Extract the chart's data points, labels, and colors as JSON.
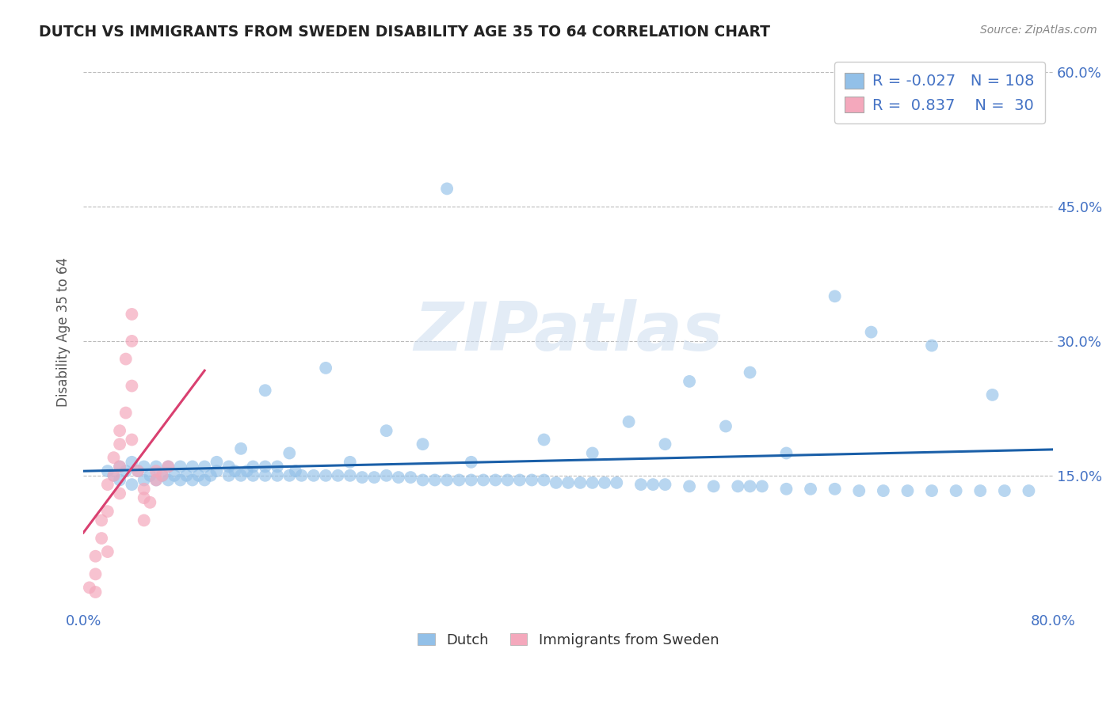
{
  "title": "DUTCH VS IMMIGRANTS FROM SWEDEN DISABILITY AGE 35 TO 64 CORRELATION CHART",
  "source": "Source: ZipAtlas.com",
  "ylabel": "Disability Age 35 to 64",
  "x_min": 0.0,
  "x_max": 0.8,
  "y_min": 0.0,
  "y_max": 0.62,
  "x_ticks": [
    0.0,
    0.1,
    0.2,
    0.3,
    0.4,
    0.5,
    0.6,
    0.7,
    0.8
  ],
  "x_tick_labels": [
    "0.0%",
    "",
    "",
    "",
    "",
    "",
    "",
    "",
    "80.0%"
  ],
  "y_ticks": [
    0.15,
    0.3,
    0.45,
    0.6
  ],
  "y_tick_labels": [
    "15.0%",
    "30.0%",
    "45.0%",
    "60.0%"
  ],
  "legend_r_blue": "-0.027",
  "legend_n_blue": "108",
  "legend_r_pink": "0.837",
  "legend_n_pink": "30",
  "blue_color": "#92c0e8",
  "pink_color": "#f4a8bc",
  "blue_line_color": "#1a5fa8",
  "pink_line_color": "#d94070",
  "watermark": "ZIPatlas",
  "legend_label_blue": "Dutch",
  "legend_label_pink": "Immigrants from Sweden",
  "blue_scatter_x": [
    0.02,
    0.025,
    0.03,
    0.03,
    0.035,
    0.04,
    0.04,
    0.045,
    0.05,
    0.05,
    0.055,
    0.06,
    0.06,
    0.065,
    0.07,
    0.07,
    0.075,
    0.08,
    0.08,
    0.085,
    0.09,
    0.09,
    0.095,
    0.1,
    0.1,
    0.105,
    0.11,
    0.11,
    0.12,
    0.12,
    0.125,
    0.13,
    0.135,
    0.14,
    0.14,
    0.15,
    0.15,
    0.16,
    0.16,
    0.17,
    0.175,
    0.18,
    0.19,
    0.2,
    0.21,
    0.22,
    0.23,
    0.24,
    0.25,
    0.26,
    0.27,
    0.28,
    0.29,
    0.3,
    0.31,
    0.32,
    0.33,
    0.34,
    0.35,
    0.36,
    0.37,
    0.38,
    0.39,
    0.4,
    0.41,
    0.42,
    0.43,
    0.44,
    0.46,
    0.47,
    0.48,
    0.5,
    0.52,
    0.54,
    0.55,
    0.56,
    0.58,
    0.6,
    0.62,
    0.64,
    0.66,
    0.68,
    0.7,
    0.72,
    0.74,
    0.76,
    0.78,
    0.3,
    0.45,
    0.62,
    0.25,
    0.2,
    0.15,
    0.28,
    0.38,
    0.5,
    0.55,
    0.65,
    0.7,
    0.75,
    0.13,
    0.17,
    0.22,
    0.32,
    0.42,
    0.48,
    0.53,
    0.58
  ],
  "blue_scatter_y": [
    0.155,
    0.15,
    0.145,
    0.16,
    0.155,
    0.14,
    0.165,
    0.155,
    0.145,
    0.16,
    0.15,
    0.145,
    0.16,
    0.15,
    0.145,
    0.16,
    0.15,
    0.145,
    0.16,
    0.15,
    0.145,
    0.16,
    0.15,
    0.145,
    0.16,
    0.15,
    0.155,
    0.165,
    0.15,
    0.16,
    0.155,
    0.15,
    0.155,
    0.15,
    0.16,
    0.15,
    0.16,
    0.15,
    0.16,
    0.15,
    0.155,
    0.15,
    0.15,
    0.15,
    0.15,
    0.15,
    0.148,
    0.148,
    0.15,
    0.148,
    0.148,
    0.145,
    0.145,
    0.145,
    0.145,
    0.145,
    0.145,
    0.145,
    0.145,
    0.145,
    0.145,
    0.145,
    0.142,
    0.142,
    0.142,
    0.142,
    0.142,
    0.142,
    0.14,
    0.14,
    0.14,
    0.138,
    0.138,
    0.138,
    0.138,
    0.138,
    0.135,
    0.135,
    0.135,
    0.133,
    0.133,
    0.133,
    0.133,
    0.133,
    0.133,
    0.133,
    0.133,
    0.47,
    0.21,
    0.35,
    0.2,
    0.27,
    0.245,
    0.185,
    0.19,
    0.255,
    0.265,
    0.31,
    0.295,
    0.24,
    0.18,
    0.175,
    0.165,
    0.165,
    0.175,
    0.185,
    0.205,
    0.175
  ],
  "pink_scatter_x": [
    0.005,
    0.01,
    0.01,
    0.015,
    0.015,
    0.02,
    0.02,
    0.025,
    0.025,
    0.03,
    0.03,
    0.03,
    0.035,
    0.035,
    0.04,
    0.04,
    0.04,
    0.045,
    0.05,
    0.05,
    0.055,
    0.06,
    0.065,
    0.07,
    0.01,
    0.02,
    0.03,
    0.04,
    0.05,
    0.06
  ],
  "pink_scatter_y": [
    0.025,
    0.04,
    0.06,
    0.08,
    0.1,
    0.11,
    0.14,
    0.15,
    0.17,
    0.16,
    0.185,
    0.2,
    0.22,
    0.28,
    0.25,
    0.3,
    0.33,
    0.155,
    0.1,
    0.135,
    0.12,
    0.145,
    0.15,
    0.16,
    0.02,
    0.065,
    0.13,
    0.19,
    0.125,
    0.155
  ]
}
